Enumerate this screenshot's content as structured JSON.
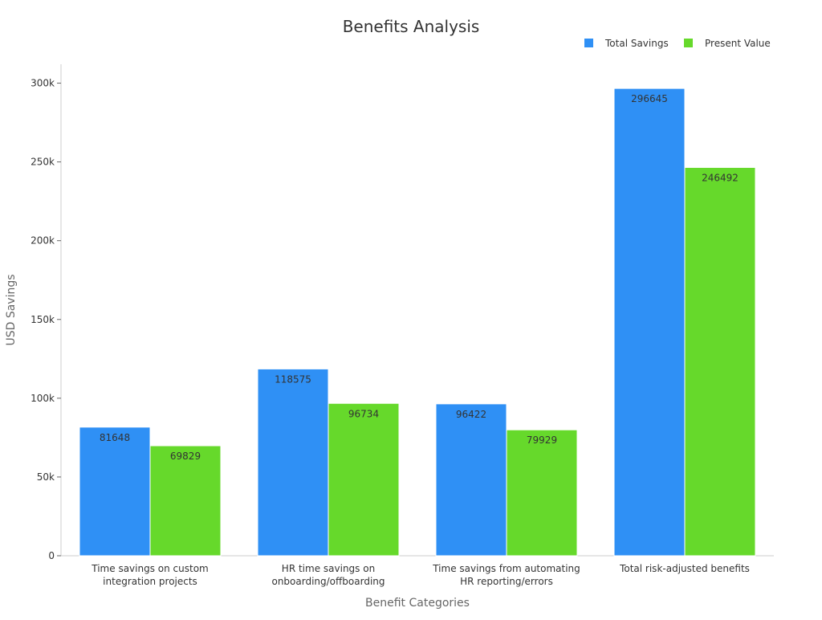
{
  "chart_data": {
    "type": "bar",
    "title": "Benefits Analysis",
    "xlabel": "Benefit Categories",
    "ylabel": "USD Savings",
    "categories": [
      [
        "Time savings on custom",
        "integration projects"
      ],
      [
        "HR time savings on",
        "onboarding/offboarding"
      ],
      [
        "Time savings from automating",
        "HR reporting/errors"
      ],
      [
        "Total risk-adjusted benefits"
      ]
    ],
    "series": [
      {
        "name": "Total Savings",
        "color": "#2f90f5",
        "values": [
          81648,
          118575,
          96422,
          296645
        ]
      },
      {
        "name": "Present Value",
        "color": "#66d92b",
        "values": [
          69829,
          96734,
          79929,
          246492
        ]
      }
    ],
    "ylim": [
      0,
      312000
    ],
    "yticks": [
      0,
      50000,
      100000,
      150000,
      200000,
      250000,
      300000
    ],
    "ytick_labels": [
      "0",
      "50k",
      "100k",
      "150k",
      "200k",
      "250k",
      "300k"
    ],
    "grid": false,
    "legend_position": "top-right",
    "data_labels": true
  }
}
